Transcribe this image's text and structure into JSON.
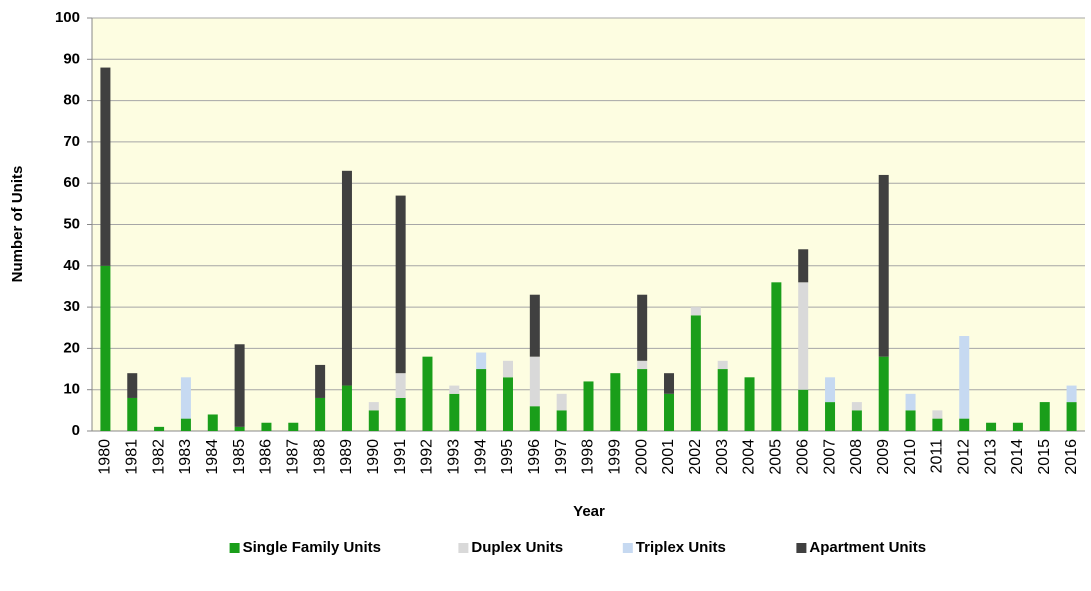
{
  "chart_data": {
    "type": "stacked_bar",
    "x_label": "Year",
    "y_label": "Number of Units",
    "categories": [
      "1980",
      "1981",
      "1982",
      "1983",
      "1984",
      "1985",
      "1986",
      "1987",
      "1988",
      "1989",
      "1990",
      "1991",
      "1992",
      "1993",
      "1994",
      "1995",
      "1996",
      "1997",
      "1998",
      "1999",
      "2000",
      "2001",
      "2002",
      "2003",
      "2004",
      "2005",
      "2006",
      "2007",
      "2008",
      "2009",
      "2010",
      "2011",
      "2012",
      "2013",
      "2014",
      "2015",
      "2016"
    ],
    "series": [
      {
        "name": "Single Family Units",
        "color": "#1a9e1a",
        "values": [
          40,
          8,
          1,
          3,
          4,
          1,
          2,
          2,
          8,
          11,
          5,
          8,
          18,
          9,
          15,
          13,
          6,
          5,
          12,
          14,
          15,
          9,
          28,
          15,
          13,
          36,
          10,
          7,
          5,
          18,
          5,
          3,
          3,
          2,
          2,
          7,
          7
        ]
      },
      {
        "name": "Duplex Units",
        "color": "#d9d9d9",
        "values": [
          0,
          0,
          0,
          0,
          0,
          0,
          0,
          0,
          0,
          0,
          2,
          6,
          0,
          2,
          0,
          4,
          12,
          4,
          0,
          0,
          2,
          0,
          2,
          2,
          0,
          0,
          26,
          0,
          2,
          0,
          0,
          2,
          0,
          0,
          0,
          0,
          0
        ]
      },
      {
        "name": "Triplex Units",
        "color": "#c6d9f1",
        "values": [
          0,
          0,
          0,
          10,
          0,
          0,
          0,
          0,
          0,
          0,
          0,
          0,
          0,
          0,
          4,
          0,
          0,
          0,
          0,
          0,
          0,
          0,
          0,
          0,
          0,
          0,
          0,
          6,
          0,
          0,
          4,
          0,
          20,
          0,
          0,
          0,
          4
        ]
      },
      {
        "name": "Apartment Units",
        "color": "#404040",
        "values": [
          48,
          6,
          0,
          0,
          0,
          20,
          0,
          0,
          8,
          52,
          0,
          43,
          0,
          0,
          0,
          0,
          15,
          0,
          0,
          0,
          16,
          5,
          0,
          0,
          0,
          0,
          8,
          0,
          0,
          44,
          0,
          0,
          0,
          0,
          0,
          0,
          0
        ]
      }
    ],
    "ylim": [
      0,
      100
    ],
    "yticks": [
      0,
      10,
      20,
      30,
      40,
      50,
      60,
      70,
      80,
      90,
      100
    ],
    "grid": true,
    "legend": "bottom",
    "plot_background": "#fdfde1"
  }
}
